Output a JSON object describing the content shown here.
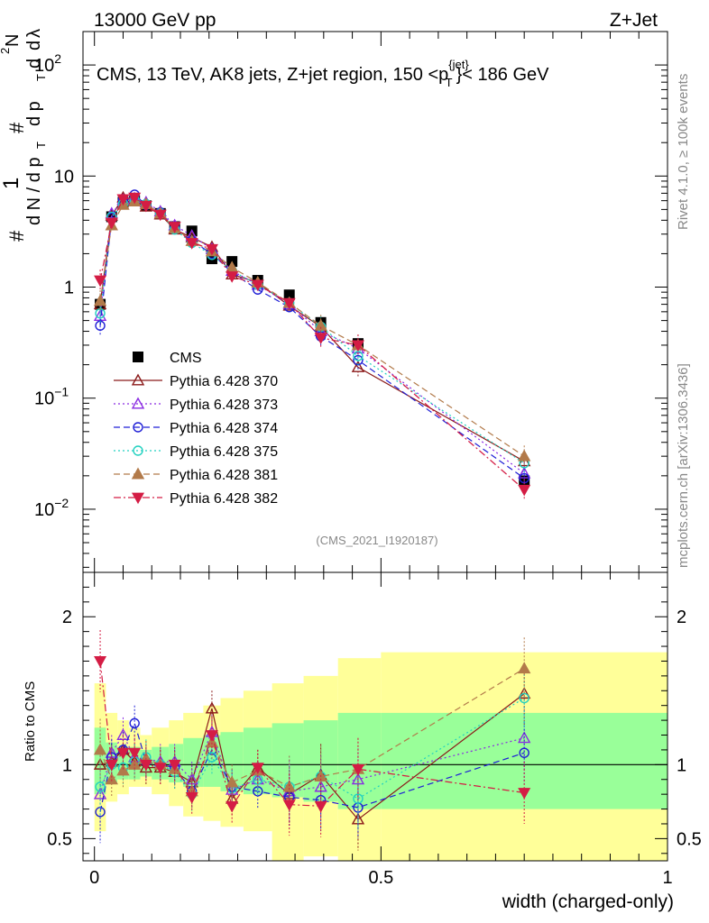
{
  "header": {
    "left": "13000 GeV pp",
    "right": "Z+Jet"
  },
  "side_labels": {
    "rivet": "Rivet 4.1.0, ≥ 100k events",
    "mcplots": "mcplots.cern.ch [arXiv:1306.3436]"
  },
  "analysis_id": "(CMS_2021_I1920187)",
  "colors": {
    "CMS": "#000000",
    "p370": "#8b1a1a",
    "p373": "#8a2be2",
    "p374": "#1f1fd6",
    "p375": "#22d1c0",
    "p381": "#b27a4a",
    "p382": "#d41c44",
    "band_inner": "#99ff99",
    "band_outer": "#ffff99"
  },
  "chart_data": [
    {
      "type": "line",
      "panel": "main",
      "title": "CMS, 13 TeV, AK8 jets, Z+jet region, 150 <p_T^{jet}< 186 GeV",
      "title_parts": [
        "CMS, 13 TeV, AK8 jets, Z+jet region, 150 <p",
        "{jet}",
        "T",
        "}< 186 GeV"
      ],
      "ylabel": "1/N dN/dλ",
      "ylabel_parts": [
        "#",
        "d N / d p",
        "T",
        "1",
        "#",
        "d p",
        "T",
        "d",
        "2",
        "N",
        "d",
        "λ"
      ],
      "yscale": "log",
      "ylim": [
        0.0027,
        200
      ],
      "xlim": [
        -0.02,
        1.0
      ],
      "y_ticks": [
        {
          "value": 100,
          "label": "10",
          "sup": "2"
        },
        {
          "value": 10,
          "label": "10",
          "sup": ""
        },
        {
          "value": 1,
          "label": "1",
          "sup": ""
        },
        {
          "value": 0.1,
          "label": "10",
          "sup": "−1"
        },
        {
          "value": 0.01,
          "label": "10",
          "sup": "−2"
        }
      ],
      "x": [
        0.01,
        0.03,
        0.05,
        0.07,
        0.09,
        0.115,
        0.14,
        0.17,
        0.205,
        0.24,
        0.285,
        0.34,
        0.395,
        0.46,
        0.75
      ],
      "series": [
        {
          "key": "CMS",
          "name": "CMS",
          "marker": "square",
          "values": [
            0.7,
            4.3,
            5.8,
            6.0,
            5.4,
            4.6,
            3.5,
            3.2,
            1.8,
            1.7,
            1.15,
            0.85,
            0.48,
            0.31,
            0.018
          ]
        },
        {
          "key": "p370",
          "name": "Pythia 6.428 370",
          "marker": "triangle-up-open",
          "values": [
            0.7,
            4.4,
            6.4,
            6.1,
            5.3,
            4.5,
            3.3,
            2.8,
            2.3,
            1.3,
            1.1,
            0.68,
            0.44,
            0.19,
            0.027
          ]
        },
        {
          "key": "p373",
          "name": "Pythia 6.428 373",
          "marker": "triangle-up-open",
          "values": [
            0.55,
            4.6,
            6.1,
            6.3,
            5.8,
            4.8,
            3.6,
            2.9,
            2.2,
            1.4,
            1.05,
            0.7,
            0.4,
            0.28,
            0.021
          ]
        },
        {
          "key": "p374",
          "name": "Pythia 6.428 374",
          "marker": "circle-open",
          "values": [
            0.45,
            4.2,
            6.1,
            6.8,
            5.5,
            4.7,
            3.4,
            2.6,
            2.0,
            1.35,
            0.95,
            0.66,
            0.36,
            0.22,
            0.019
          ]
        },
        {
          "key": "p375",
          "name": "Pythia 6.428 375",
          "marker": "circle-open",
          "values": [
            0.58,
            4.3,
            5.6,
            6.1,
            5.6,
            4.6,
            3.3,
            2.5,
            1.95,
            1.4,
            1.05,
            0.72,
            0.44,
            0.24,
            0.026
          ]
        },
        {
          "key": "p381",
          "name": "Pythia 6.428 381",
          "marker": "triangle-up-filled",
          "values": [
            0.75,
            3.6,
            5.5,
            5.9,
            5.6,
            4.6,
            3.4,
            2.6,
            2.1,
            1.5,
            1.1,
            0.72,
            0.45,
            0.3,
            0.03
          ]
        },
        {
          "key": "p382",
          "name": "Pythia 6.428 382",
          "marker": "triangle-down-filled",
          "values": [
            1.15,
            3.8,
            6.2,
            6.4,
            5.4,
            4.5,
            3.5,
            2.5,
            2.2,
            1.25,
            1.05,
            0.72,
            0.35,
            0.3,
            0.015
          ]
        }
      ]
    },
    {
      "type": "line",
      "panel": "ratio",
      "ylabel": "Ratio to CMS",
      "yscale": "linear",
      "ylim": [
        0.35,
        2.3
      ],
      "xlim": [
        -0.02,
        1.0
      ],
      "xlabel": "width (charged-only)",
      "x_ticks": [
        {
          "value": 0,
          "label": "0"
        },
        {
          "value": 0.5,
          "label": "0.5"
        },
        {
          "value": 1,
          "label": "1"
        }
      ],
      "y_ticks": [
        {
          "value": 2,
          "label": "2"
        },
        {
          "value": 1,
          "label": "1"
        },
        {
          "value": 0.5,
          "label": "0.5"
        }
      ],
      "x": [
        0.01,
        0.03,
        0.05,
        0.07,
        0.09,
        0.115,
        0.14,
        0.17,
        0.205,
        0.24,
        0.285,
        0.34,
        0.395,
        0.46,
        0.75
      ],
      "bands": {
        "edges": [
          0.0,
          0.02,
          0.04,
          0.06,
          0.08,
          0.1,
          0.13,
          0.155,
          0.19,
          0.22,
          0.26,
          0.31,
          0.365,
          0.425,
          0.5,
          1.0
        ],
        "inner": [
          [
            0.8,
            1.25
          ],
          [
            0.88,
            1.15
          ],
          [
            0.9,
            1.12
          ],
          [
            0.9,
            1.12
          ],
          [
            0.92,
            1.1
          ],
          [
            0.9,
            1.12
          ],
          [
            0.88,
            1.14
          ],
          [
            0.85,
            1.18
          ],
          [
            0.85,
            1.2
          ],
          [
            0.82,
            1.22
          ],
          [
            0.8,
            1.25
          ],
          [
            0.78,
            1.28
          ],
          [
            0.75,
            1.3
          ],
          [
            0.7,
            1.35
          ],
          [
            0.7,
            1.35
          ]
        ],
        "outer": [
          [
            0.55,
            1.55
          ],
          [
            0.75,
            1.35
          ],
          [
            0.8,
            1.3
          ],
          [
            0.85,
            1.25
          ],
          [
            0.85,
            1.2
          ],
          [
            0.8,
            1.25
          ],
          [
            0.72,
            1.3
          ],
          [
            0.65,
            1.35
          ],
          [
            0.62,
            1.4
          ],
          [
            0.58,
            1.45
          ],
          [
            0.55,
            1.5
          ],
          [
            0.35,
            1.55
          ],
          [
            0.38,
            1.6
          ],
          [
            0.35,
            1.72
          ],
          [
            0.35,
            1.76
          ]
        ]
      },
      "series": [
        {
          "key": "p370",
          "name": "Pythia 6.428 370",
          "marker": "triangle-up-open",
          "values": [
            1.0,
            1.02,
            1.1,
            1.02,
            0.98,
            0.98,
            0.95,
            0.88,
            1.38,
            0.77,
            0.98,
            0.8,
            0.93,
            0.63,
            1.48
          ]
        },
        {
          "key": "p373",
          "name": "Pythia 6.428 373",
          "marker": "triangle-up-open",
          "values": [
            0.8,
            1.08,
            1.2,
            1.05,
            1.04,
            1.02,
            1.02,
            0.9,
            1.22,
            0.83,
            0.9,
            0.82,
            0.85,
            0.9,
            1.18
          ]
        },
        {
          "key": "p374",
          "name": "Pythia 6.428 374",
          "marker": "circle-open",
          "values": [
            0.68,
            1.05,
            1.1,
            1.28,
            1.02,
            1.0,
            0.98,
            0.82,
            1.1,
            0.85,
            0.82,
            0.78,
            0.76,
            0.71,
            1.08
          ]
        },
        {
          "key": "p375",
          "name": "Pythia 6.428 375",
          "marker": "circle-open",
          "values": [
            0.85,
            1.0,
            0.98,
            1.02,
            1.05,
            1.0,
            0.95,
            0.8,
            1.05,
            0.84,
            0.9,
            0.85,
            0.92,
            0.77,
            1.45
          ]
        },
        {
          "key": "p381",
          "name": "Pythia 6.428 381",
          "marker": "triangle-up-filled",
          "values": [
            1.1,
            0.9,
            0.96,
            1.0,
            1.04,
            1.0,
            0.97,
            0.82,
            1.15,
            0.88,
            0.96,
            0.85,
            0.92,
            0.97,
            1.65
          ]
        },
        {
          "key": "p382",
          "name": "Pythia 6.428 382",
          "marker": "triangle-down-filled",
          "values": [
            1.7,
            1.0,
            1.08,
            1.08,
            1.0,
            0.98,
            1.0,
            0.78,
            1.2,
            0.72,
            0.98,
            0.73,
            0.72,
            0.97,
            0.81
          ]
        }
      ]
    }
  ]
}
